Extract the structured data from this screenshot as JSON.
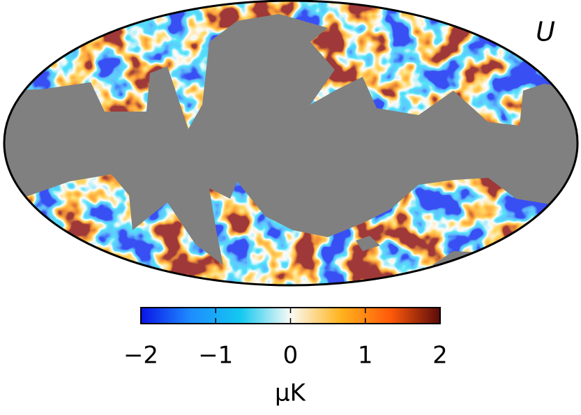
{
  "chart_data": {
    "type": "map",
    "title": "U",
    "colorbar": {
      "clim": [
        -2,
        2
      ],
      "ticks": [
        {
          "value": -2,
          "label": "−2"
        },
        {
          "value": -1,
          "label": "−1"
        },
        0,
        1,
        {
          "value": 2,
          "label": "2"
        }
      ],
      "label": "μK",
      "colormap": [
        "#0a14e6",
        "#1e8cff",
        "#14c8f0",
        "#fafaf5",
        "#ffb41e",
        "#ff5a0a",
        "#5a0a0a"
      ]
    }
  }
}
